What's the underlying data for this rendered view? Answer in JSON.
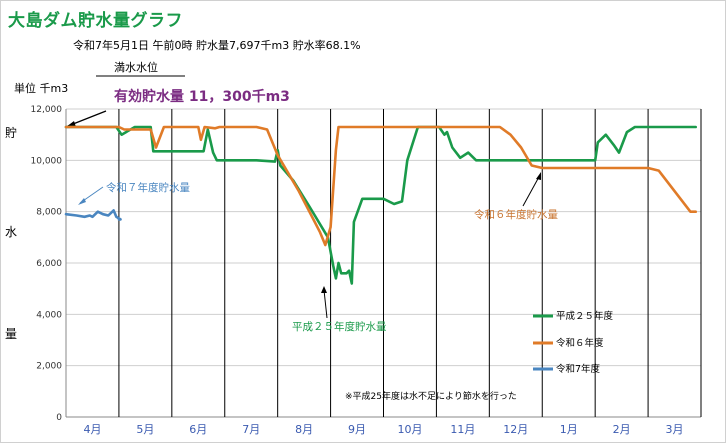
{
  "chart_data": {
    "type": "line",
    "title": "大島ダム貯水量グラフ",
    "status_text": "令和7年5月1日 午前0時 貯水量7,697千m3 貯水率68.1%",
    "unit_label": "単位 千m3",
    "capacity_label": "満水水位",
    "effective_label": "有効貯水量 11，300千m3",
    "ylabel_chars": [
      "貯",
      "水",
      "量"
    ],
    "ylim": [
      0,
      12000
    ],
    "yticks": [
      "0",
      "2,000",
      "4,000",
      "6,000",
      "8,000",
      "10,000",
      "12,000"
    ],
    "ytick_values": [
      0,
      2000,
      4000,
      6000,
      8000,
      10000,
      12000
    ],
    "months": [
      "4月",
      "5月",
      "6月",
      "7月",
      "8月",
      "9月",
      "10月",
      "11月",
      "12月",
      "1月",
      "2月",
      "3月"
    ],
    "xlim": [
      0,
      12
    ],
    "note": "※平成25年度は水不足により節水を行った",
    "colors": {
      "h25": "#1a9a4a",
      "r6": "#e07b28",
      "r7": "#4a86c0",
      "annotation_r7": "#4a86c0",
      "annotation_r6": "#c87430",
      "annotation_h25": "#1a9a4a"
    },
    "annotations": {
      "r7": "令和７年度貯水量",
      "r6": "令和６年度貯水量",
      "h25": "平成２５年度貯水量"
    },
    "series": [
      {
        "key": "h25",
        "name": "平成２５年度",
        "points": [
          [
            0,
            11300
          ],
          [
            0.95,
            11300
          ],
          [
            1.05,
            11000
          ],
          [
            1.3,
            11300
          ],
          [
            1.6,
            11300
          ],
          [
            1.65,
            10350
          ],
          [
            2.6,
            10350
          ],
          [
            2.68,
            11200
          ],
          [
            2.78,
            10300
          ],
          [
            2.85,
            10000
          ],
          [
            3.6,
            10000
          ],
          [
            3.95,
            9950
          ],
          [
            4.0,
            10400
          ],
          [
            4.05,
            9800
          ],
          [
            4.3,
            9200
          ],
          [
            4.6,
            8200
          ],
          [
            4.95,
            7000
          ],
          [
            5.05,
            5900
          ],
          [
            5.1,
            5400
          ],
          [
            5.15,
            6000
          ],
          [
            5.2,
            5600
          ],
          [
            5.3,
            5600
          ],
          [
            5.35,
            5700
          ],
          [
            5.4,
            5200
          ],
          [
            5.44,
            7600
          ],
          [
            5.6,
            8500
          ],
          [
            6.0,
            8500
          ],
          [
            6.2,
            8300
          ],
          [
            6.35,
            8400
          ],
          [
            6.45,
            10000
          ],
          [
            6.65,
            11300
          ],
          [
            7.05,
            11300
          ],
          [
            7.15,
            11000
          ],
          [
            7.2,
            11100
          ],
          [
            7.3,
            10500
          ],
          [
            7.45,
            10100
          ],
          [
            7.6,
            10300
          ],
          [
            7.75,
            10000
          ],
          [
            8.15,
            10000
          ],
          [
            8.3,
            10000
          ],
          [
            8.65,
            10000
          ],
          [
            9.35,
            10000
          ],
          [
            10.0,
            10000
          ],
          [
            10.05,
            10700
          ],
          [
            10.2,
            11000
          ],
          [
            10.35,
            10600
          ],
          [
            10.45,
            10300
          ],
          [
            10.6,
            11100
          ],
          [
            10.75,
            11300
          ],
          [
            11.9,
            11300
          ]
        ]
      },
      {
        "key": "r6",
        "name": "令和６年度",
        "points": [
          [
            0,
            11300
          ],
          [
            1.0,
            11300
          ],
          [
            1.1,
            11200
          ],
          [
            1.6,
            11200
          ],
          [
            1.7,
            10500
          ],
          [
            1.85,
            11300
          ],
          [
            2.5,
            11300
          ],
          [
            2.55,
            10800
          ],
          [
            2.62,
            11300
          ],
          [
            2.82,
            11250
          ],
          [
            2.9,
            11300
          ],
          [
            3.3,
            11300
          ],
          [
            3.6,
            11300
          ],
          [
            3.8,
            11200
          ],
          [
            4.0,
            10200
          ],
          [
            4.4,
            8800
          ],
          [
            4.8,
            7200
          ],
          [
            4.9,
            6700
          ],
          [
            5.0,
            7400
          ],
          [
            5.1,
            10400
          ],
          [
            5.15,
            11300
          ],
          [
            7.4,
            11300
          ],
          [
            8.0,
            11300
          ],
          [
            8.2,
            11300
          ],
          [
            8.4,
            11000
          ],
          [
            8.6,
            10500
          ],
          [
            8.8,
            9800
          ],
          [
            9.0,
            9700
          ],
          [
            10.0,
            9700
          ],
          [
            11.0,
            9700
          ],
          [
            11.2,
            9600
          ],
          [
            11.5,
            8800
          ],
          [
            11.8,
            8000
          ],
          [
            11.9,
            8000
          ]
        ]
      },
      {
        "key": "r7",
        "name": "令和7年度",
        "points": [
          [
            0,
            7900
          ],
          [
            0.2,
            7850
          ],
          [
            0.35,
            7800
          ],
          [
            0.45,
            7850
          ],
          [
            0.5,
            7800
          ],
          [
            0.6,
            8000
          ],
          [
            0.7,
            7900
          ],
          [
            0.8,
            7850
          ],
          [
            0.9,
            8050
          ],
          [
            0.95,
            7800
          ],
          [
            1.03,
            7700
          ],
          [
            1.0,
            7697
          ]
        ]
      }
    ]
  }
}
